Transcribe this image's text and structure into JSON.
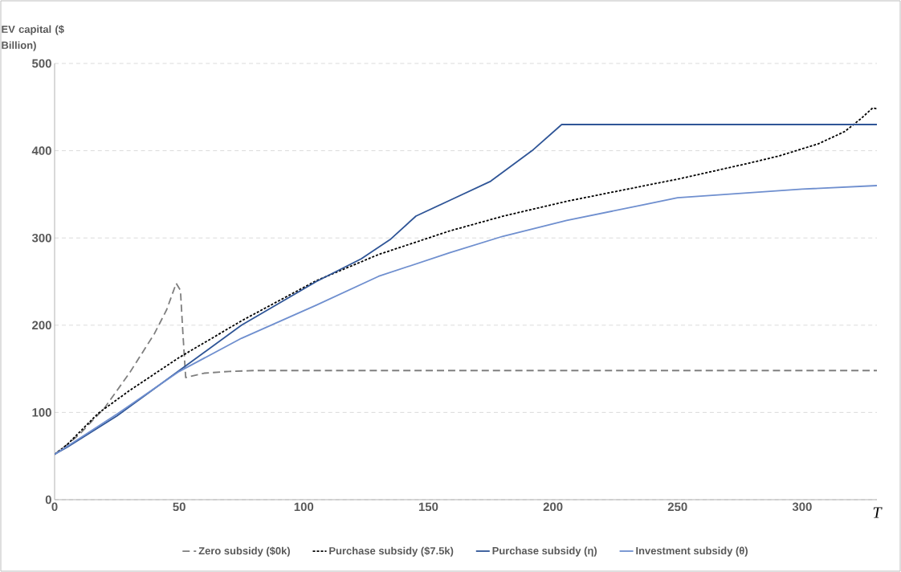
{
  "chart_data": {
    "type": "line",
    "ylabel": "EV capital ($ Billion)",
    "xlabel": "T",
    "xlim": [
      0,
      330
    ],
    "xticks": [
      0,
      50,
      100,
      150,
      200,
      250,
      300
    ],
    "ylim": [
      0,
      500
    ],
    "yticks": [
      0,
      100,
      200,
      300,
      400,
      500
    ],
    "grid": "y",
    "legend": "bottom",
    "marker": "none",
    "series": [
      {
        "name": "Zero subsidy ($0k)",
        "color": "#7f7f7f",
        "line_style": "dashed",
        "x": [
          0,
          5,
          10,
          20,
          30,
          40,
          45,
          48.8,
          50.5,
          51.5,
          52.6,
          60,
          70,
          80,
          330
        ],
        "values": [
          52,
          63,
          75,
          105,
          145,
          190,
          218,
          248,
          240,
          190,
          140,
          145,
          147,
          148,
          148
        ]
      },
      {
        "name": "Purchase subsidy ($7.5k)",
        "color": "#000000",
        "line_style": "dotted",
        "x": [
          0,
          5,
          17.5,
          30,
          50,
          75,
          105,
          130,
          158.5,
          180,
          205.5,
          251,
          277.6,
          290.8,
          306.6,
          317.1,
          323.7,
          328.3,
          330
        ],
        "values": [
          52,
          63,
          99,
          125,
          163,
          205,
          251,
          281,
          308,
          325,
          342,
          368,
          385,
          394,
          408,
          422,
          437,
          449,
          448
        ]
      },
      {
        "name": "Purchase subsidy (η)",
        "color": "#2f5597",
        "line_style": "solid",
        "x": [
          0,
          5,
          25,
          50,
          75,
          105,
          123,
          134.6,
          145,
          158.5,
          175,
          191.6,
          203.5,
          330
        ],
        "values": [
          52,
          60,
          96,
          148,
          200,
          250,
          276,
          298,
          325,
          343,
          365,
          400,
          430,
          430
        ]
      },
      {
        "name": "Investment subsidy (θ)",
        "color": "#6f8fcf",
        "line_style": "solid",
        "x": [
          0,
          5,
          25,
          50,
          75,
          105,
          130,
          158.5,
          180,
          205.5,
          250,
          300,
          330
        ],
        "values": [
          52,
          61,
          98,
          147,
          185,
          223,
          256,
          283,
          302,
          320,
          346,
          356,
          360
        ]
      }
    ]
  }
}
